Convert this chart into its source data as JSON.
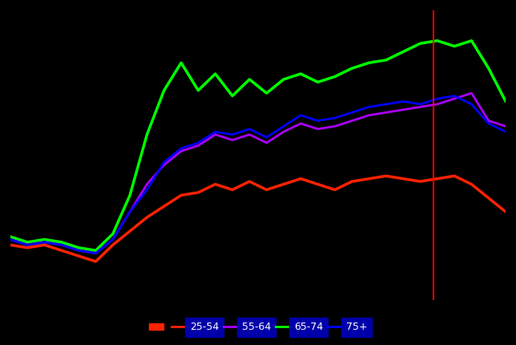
{
  "background_color": "#000000",
  "plot_bg_color": "#000000",
  "vline_x": 0.855,
  "series": {
    "age_25_54": {
      "color": "#ff2200",
      "linewidth": 2.5,
      "data": [
        0.5,
        0.49,
        0.5,
        0.48,
        0.46,
        0.44,
        0.5,
        0.55,
        0.6,
        0.64,
        0.68,
        0.69,
        0.72,
        0.7,
        0.73,
        0.7,
        0.72,
        0.74,
        0.72,
        0.7,
        0.73,
        0.74,
        0.75,
        0.74,
        0.73,
        0.74,
        0.75,
        0.72,
        0.67,
        0.62
      ]
    },
    "age_55_64": {
      "color": "#aa00ff",
      "linewidth": 2.0,
      "data": [
        0.52,
        0.5,
        0.51,
        0.5,
        0.48,
        0.47,
        0.52,
        0.62,
        0.72,
        0.79,
        0.84,
        0.86,
        0.9,
        0.88,
        0.9,
        0.87,
        0.91,
        0.94,
        0.92,
        0.93,
        0.95,
        0.97,
        0.98,
        0.99,
        1.0,
        1.01,
        1.03,
        1.05,
        0.95,
        0.93
      ]
    },
    "age_65_74": {
      "color": "#00ff00",
      "linewidth": 2.5,
      "data": [
        0.53,
        0.51,
        0.52,
        0.51,
        0.49,
        0.48,
        0.54,
        0.68,
        0.9,
        1.06,
        1.16,
        1.06,
        1.12,
        1.04,
        1.1,
        1.05,
        1.1,
        1.12,
        1.09,
        1.11,
        1.14,
        1.16,
        1.17,
        1.2,
        1.23,
        1.24,
        1.22,
        1.24,
        1.14,
        1.02
      ]
    },
    "age_75_plus": {
      "color": "#0000ff",
      "linewidth": 2.0,
      "data": [
        0.52,
        0.5,
        0.51,
        0.5,
        0.48,
        0.47,
        0.52,
        0.62,
        0.7,
        0.8,
        0.85,
        0.87,
        0.91,
        0.9,
        0.92,
        0.89,
        0.93,
        0.97,
        0.95,
        0.96,
        0.98,
        1.0,
        1.01,
        1.02,
        1.01,
        1.03,
        1.04,
        1.01,
        0.94,
        0.91
      ]
    }
  },
  "legend_items": [
    {
      "label": "",
      "type": "patch",
      "color": "#ff2200"
    },
    {
      "label": "25-54",
      "type": "line",
      "color": "#ff2200"
    },
    {
      "label": "55-64",
      "type": "line",
      "color": "#aa00ff"
    },
    {
      "label": "65-74",
      "type": "line",
      "color": "#00ff00"
    },
    {
      "label": "75+",
      "type": "line",
      "color": "#0000ff"
    }
  ],
  "legend_label_bg": "#0000aa",
  "text_color": "#ffffff"
}
